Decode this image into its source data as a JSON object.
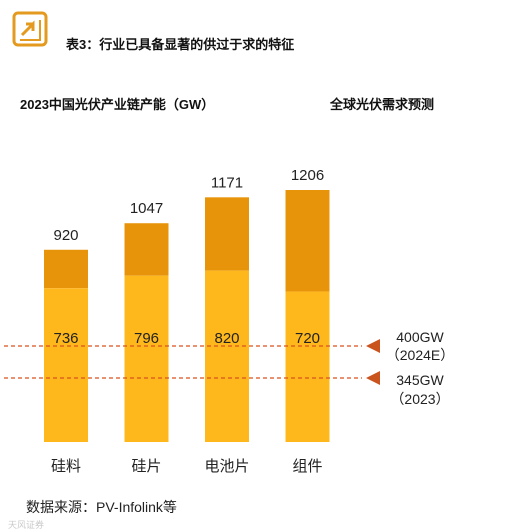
{
  "header": {
    "title": "表3：行业已具备显著的供过于求的特征"
  },
  "chart_data": {
    "type": "bar",
    "title": "2023中国光伏产业链产能（GW）",
    "right_title": "全球光伏需求预测",
    "categories": [
      "硅料",
      "硅片",
      "电池片",
      "组件"
    ],
    "totals": [
      920,
      1047,
      1171,
      1206
    ],
    "series": [
      {
        "values": [
          736,
          796,
          820,
          720
        ]
      }
    ],
    "ylim": [
      0,
      1206
    ],
    "reference_lines": [
      {
        "value": 400,
        "label_value": "400GW",
        "label_year": "（2024E）"
      },
      {
        "value": 345,
        "label_value": "345GW",
        "label_year": "（2023）"
      }
    ],
    "colors": {
      "bottom": "#FFB81C",
      "top": "#E8940A",
      "ref_line": "#D9511E",
      "ref_marker": "#C9541E",
      "logo": "#E39A1F"
    },
    "grid": false,
    "legend": "none"
  },
  "footer": {
    "source": "数据来源：PV-Infolink等",
    "watermark": "天风证券"
  }
}
